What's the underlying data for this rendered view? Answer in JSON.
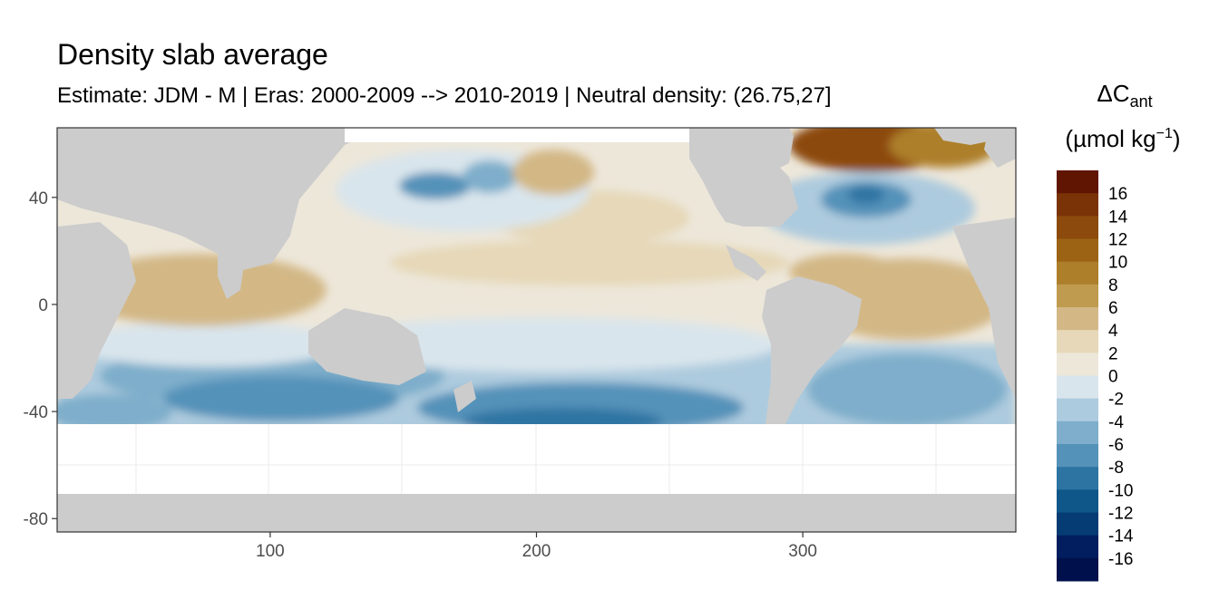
{
  "chart_data": {
    "type": "heatmap",
    "title": "Density slab average",
    "subtitle": "Estimate: JDM - M | Eras: 2000-2009 --> 2010-2019 | Neutral density: (26.75,27]",
    "xlabel": "",
    "ylabel": "",
    "xlim": [
      20,
      380
    ],
    "ylim": [
      -85,
      66
    ],
    "x_ticks": [
      100,
      200,
      300
    ],
    "y_ticks": [
      40,
      0,
      -40,
      -80
    ],
    "grid": true,
    "legend": {
      "title_main": "ΔC",
      "title_sub": "ant",
      "unit_prefix": "(µmol kg",
      "unit_sup": "−1",
      "unit_suffix": ")",
      "placement": "right",
      "labels": [
        "16",
        "14",
        "12",
        "10",
        "8",
        "6",
        "4",
        "2",
        "0",
        "-2",
        "-4",
        "-6",
        "-8",
        "-10",
        "-12",
        "-14",
        "-16"
      ],
      "colors": [
        "#5f1502",
        "#7a3307",
        "#8c4a0c",
        "#9c6315",
        "#ad7f2a",
        "#bf9b4f",
        "#d3b886",
        "#e6d8b8",
        "#ede7da",
        "#d9e5ec",
        "#adcbde",
        "#7eaecb",
        "#5592b9",
        "#2d74a3",
        "#0f5789",
        "#053c73",
        "#021e5e",
        "#00104c"
      ]
    },
    "colors": {
      "land": "#cccccc",
      "no_data": "#ffffff",
      "panel_border": "#333333"
    }
  }
}
